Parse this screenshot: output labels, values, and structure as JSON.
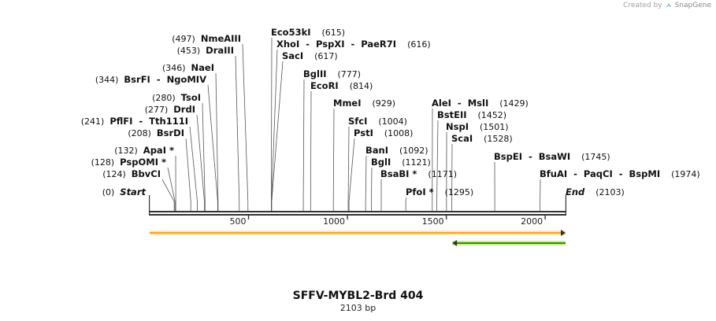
{
  "credit": {
    "prefix": "Created by",
    "brand": "SnapGene"
  },
  "title": "SFFV-MYBL2-Brd 404",
  "subtitle": "2103 bp",
  "colors": {
    "backbone": "#333333",
    "feature_orange": "#f5a623",
    "feature_green": "#2e8b1e",
    "feature_green_fill": "#c9f08a"
  },
  "map": {
    "length": 2103,
    "ticks": [
      {
        "pos": 500,
        "label": "500"
      },
      {
        "pos": 1000,
        "label": "1000"
      },
      {
        "pos": 1500,
        "label": "1500"
      },
      {
        "pos": 2000,
        "label": "2000"
      }
    ],
    "features": [
      {
        "name": "orange-arrow",
        "start": 0,
        "end": 2103,
        "direction": "forward",
        "color": "#f5a623"
      },
      {
        "name": "green-arrow",
        "start": 1530,
        "end": 2103,
        "direction": "reverse",
        "color": "#2e8b1e"
      }
    ],
    "sites": [
      {
        "label": "Start",
        "pos_text": "(0)",
        "pos": 0,
        "kind": "start"
      },
      {
        "label": "BbvCI",
        "pos_text": "(124)",
        "pos": 124
      },
      {
        "label": "PspOMI *",
        "pos_text": "(128)",
        "pos": 128
      },
      {
        "label": "ApaI *",
        "pos_text": "(132)",
        "pos": 132
      },
      {
        "label": "BsrDI",
        "pos_text": "(208)",
        "pos": 208
      },
      {
        "label": "PflFI  -  Tth111I",
        "pos_text": "(241)",
        "pos": 241
      },
      {
        "label": "DrdI",
        "pos_text": "(277)",
        "pos": 277
      },
      {
        "label": "TsoI",
        "pos_text": "(280)",
        "pos": 280
      },
      {
        "label": "BsrFI  -  NgoMIV",
        "pos_text": "(344)",
        "pos": 344
      },
      {
        "label": "NaeI",
        "pos_text": "(346)",
        "pos": 346
      },
      {
        "label": "DraIII",
        "pos_text": "(453)",
        "pos": 453
      },
      {
        "label": "NmeAIII",
        "pos_text": "(497)",
        "pos": 497
      },
      {
        "label": "Eco53kI",
        "pos_text": "(615)",
        "pos": 615
      },
      {
        "label": "XhoI  -  PspXI  -  PaeR7I",
        "pos_text": "(616)",
        "pos": 616
      },
      {
        "label": "SacI",
        "pos_text": "(617)",
        "pos": 617
      },
      {
        "label": "BglII",
        "pos_text": "(777)",
        "pos": 777
      },
      {
        "label": "EcoRI",
        "pos_text": "(814)",
        "pos": 814
      },
      {
        "label": "MmeI",
        "pos_text": "(929)",
        "pos": 929
      },
      {
        "label": "SfcI",
        "pos_text": "(1004)",
        "pos": 1004
      },
      {
        "label": "PstI",
        "pos_text": "(1008)",
        "pos": 1008
      },
      {
        "label": "BanI",
        "pos_text": "(1092)",
        "pos": 1092
      },
      {
        "label": "BglI",
        "pos_text": "(1121)",
        "pos": 1121
      },
      {
        "label": "BsaBI *",
        "pos_text": "(1171)",
        "pos": 1171
      },
      {
        "label": "PfoI *",
        "pos_text": "(1295)",
        "pos": 1295
      },
      {
        "label": "AleI  -  MslI",
        "pos_text": "(1429)",
        "pos": 1429
      },
      {
        "label": "BstEII",
        "pos_text": "(1452)",
        "pos": 1452
      },
      {
        "label": "NspI",
        "pos_text": "(1501)",
        "pos": 1501
      },
      {
        "label": "ScaI",
        "pos_text": "(1528)",
        "pos": 1528
      },
      {
        "label": "BspEI  -  BsaWI",
        "pos_text": "(1745)",
        "pos": 1745
      },
      {
        "label": "BfuAI  -  PaqCI  -  BspMI",
        "pos_text": "(1974)",
        "pos": 1974
      },
      {
        "label": "End",
        "pos_text": "(2103)",
        "pos": 2103,
        "kind": "end"
      }
    ]
  }
}
